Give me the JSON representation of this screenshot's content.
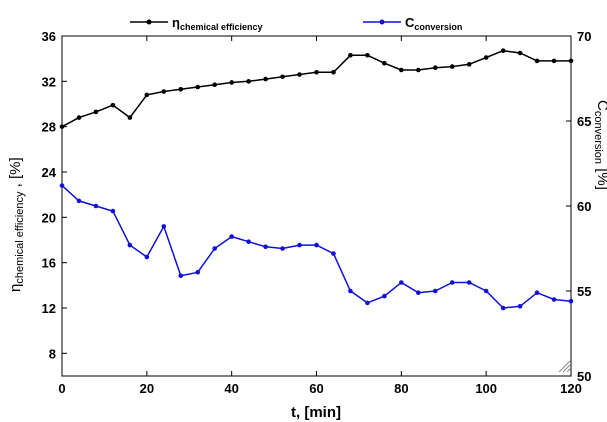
{
  "chart_data": {
    "type": "line",
    "title": "",
    "x_axis": {
      "label": "t, [min]",
      "range": [
        0,
        120
      ],
      "ticks": [
        0,
        20,
        40,
        60,
        80,
        100,
        120
      ]
    },
    "y_axis_left": {
      "label_main": "η",
      "label_sub": "chemical efficiency",
      "label_suffix": " , [%]",
      "range": [
        6,
        36
      ],
      "ticks": [
        8,
        12,
        16,
        20,
        24,
        28,
        32,
        36
      ]
    },
    "y_axis_right": {
      "label_main": "C",
      "label_sub": "conversion",
      "label_suffix": " [%]",
      "range": [
        50,
        70
      ],
      "ticks": [
        50,
        55,
        60,
        65,
        70
      ]
    },
    "legend_placement": "top",
    "grid": false,
    "series": [
      {
        "name_main": "η",
        "name_sub": "chemical efficiency",
        "axis": "left",
        "color": "#000000",
        "x": [
          0,
          4,
          8,
          12,
          16,
          20,
          24,
          28,
          32,
          36,
          40,
          44,
          48,
          52,
          56,
          60,
          64,
          68,
          72,
          76,
          80,
          84,
          88,
          92,
          96,
          100,
          104,
          108,
          112,
          116,
          120
        ],
        "y": [
          28.0,
          28.8,
          29.3,
          29.9,
          28.8,
          30.8,
          31.1,
          31.3,
          31.5,
          31.7,
          31.9,
          32.0,
          32.2,
          32.4,
          32.6,
          32.8,
          32.8,
          34.3,
          34.3,
          33.6,
          33.0,
          33.0,
          33.2,
          33.3,
          33.5,
          34.1,
          34.7,
          34.5,
          33.8,
          33.8,
          33.8
        ]
      },
      {
        "name_main": "C",
        "name_sub": "conversion",
        "axis": "right",
        "color": "#1010d8",
        "x": [
          0,
          4,
          8,
          12,
          16,
          20,
          24,
          28,
          32,
          36,
          40,
          44,
          48,
          52,
          56,
          60,
          64,
          68,
          72,
          76,
          80,
          84,
          88,
          92,
          96,
          100,
          104,
          108,
          112,
          116,
          120
        ],
        "y": [
          61.2,
          60.3,
          60.0,
          59.7,
          57.7,
          57.0,
          58.8,
          55.9,
          56.1,
          57.5,
          58.2,
          57.9,
          57.6,
          57.5,
          57.7,
          57.7,
          57.2,
          55.0,
          54.3,
          54.7,
          55.5,
          54.9,
          55.0,
          55.5,
          55.5,
          55.0,
          54.0,
          54.1,
          54.9,
          54.5,
          54.4
        ]
      }
    ]
  }
}
